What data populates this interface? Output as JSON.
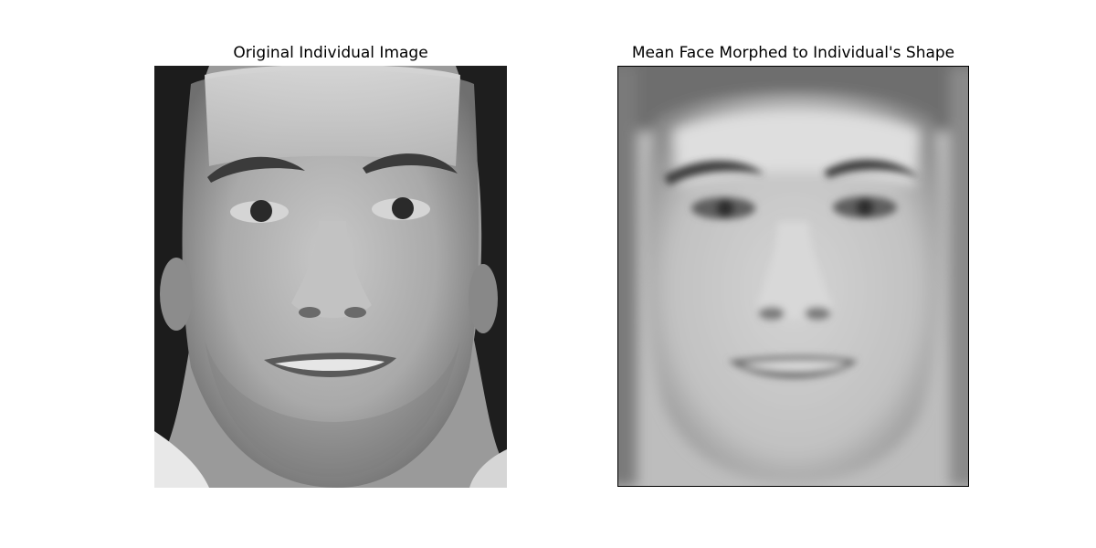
{
  "figures": [
    {
      "title": "Original Individual Image"
    },
    {
      "title": "Mean Face Morphed to Individual's Shape"
    }
  ],
  "colors": {
    "background": "#ffffff",
    "frame": "#000000"
  }
}
